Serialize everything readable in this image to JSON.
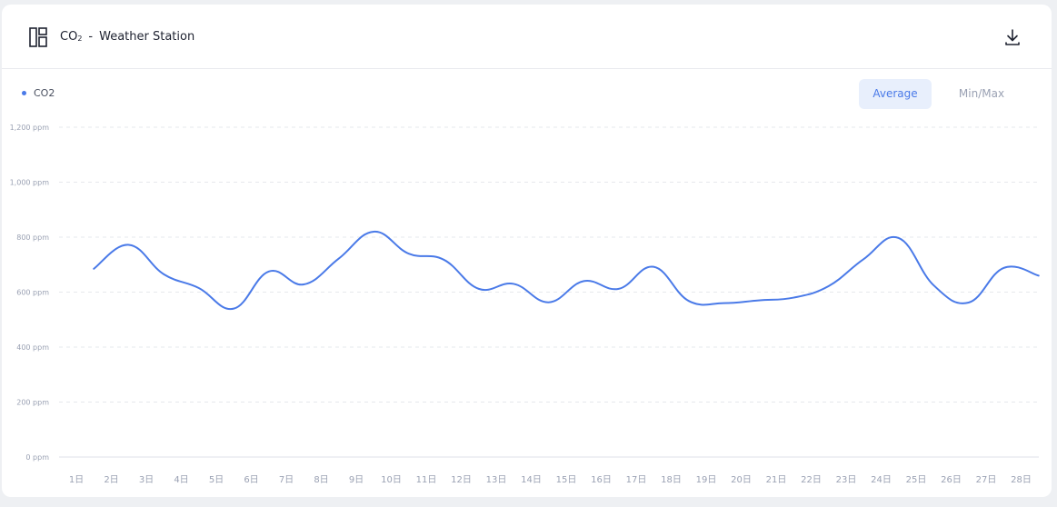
{
  "header": {
    "title_main": "CO",
    "title_sub": "2",
    "title_sep": "-",
    "title_station": "Weather Station",
    "download_icon": "download-icon",
    "layout_icon": "layout-icon"
  },
  "toggles": {
    "average": "Average",
    "minmax": "Min/Max"
  },
  "colors": {
    "line": "#4a7ae8",
    "grid": "#e6e8ec",
    "accent_bg": "#e8effc"
  },
  "chart_data": {
    "type": "line",
    "xlabel": "",
    "ylabel": "",
    "ylim": [
      0,
      1200
    ],
    "yticks": [
      "0 ppm",
      "200 ppm",
      "400 ppm",
      "600 ppm",
      "800 ppm",
      "1,000 ppm",
      "1,200 ppm"
    ],
    "ytick_values": [
      0,
      200,
      400,
      600,
      800,
      1000,
      1200
    ],
    "categories": [
      "1日",
      "2日",
      "3日",
      "4日",
      "5日",
      "6日",
      "7日",
      "8日",
      "9日",
      "10日",
      "11日",
      "12日",
      "13日",
      "14日",
      "15日",
      "16日",
      "17日",
      "18日",
      "19日",
      "20日",
      "21日",
      "22日",
      "23日",
      "24日",
      "25日",
      "26日",
      "27日",
      "28日"
    ],
    "grid": true,
    "legend_position": "top-left",
    "series": [
      {
        "name": "CO2",
        "color": "#4a7ae8",
        "x": [
          1.5,
          2.5,
          3.5,
          4.5,
          5.5,
          6.5,
          7.5,
          8.5,
          9.5,
          10.5,
          11.5,
          12.5,
          13.5,
          14.5,
          15.5,
          16.5,
          17.5,
          18.5,
          19.5,
          20.5,
          21.5,
          22.5,
          23.5,
          24.5,
          25.5,
          26.5,
          27.5,
          28.5
        ],
        "values": [
          685,
          772,
          665,
          615,
          540,
          675,
          628,
          722,
          820,
          740,
          718,
          612,
          630,
          563,
          640,
          612,
          692,
          568,
          560,
          570,
          580,
          622,
          720,
          797,
          625,
          562,
          688,
          660
        ]
      }
    ]
  }
}
